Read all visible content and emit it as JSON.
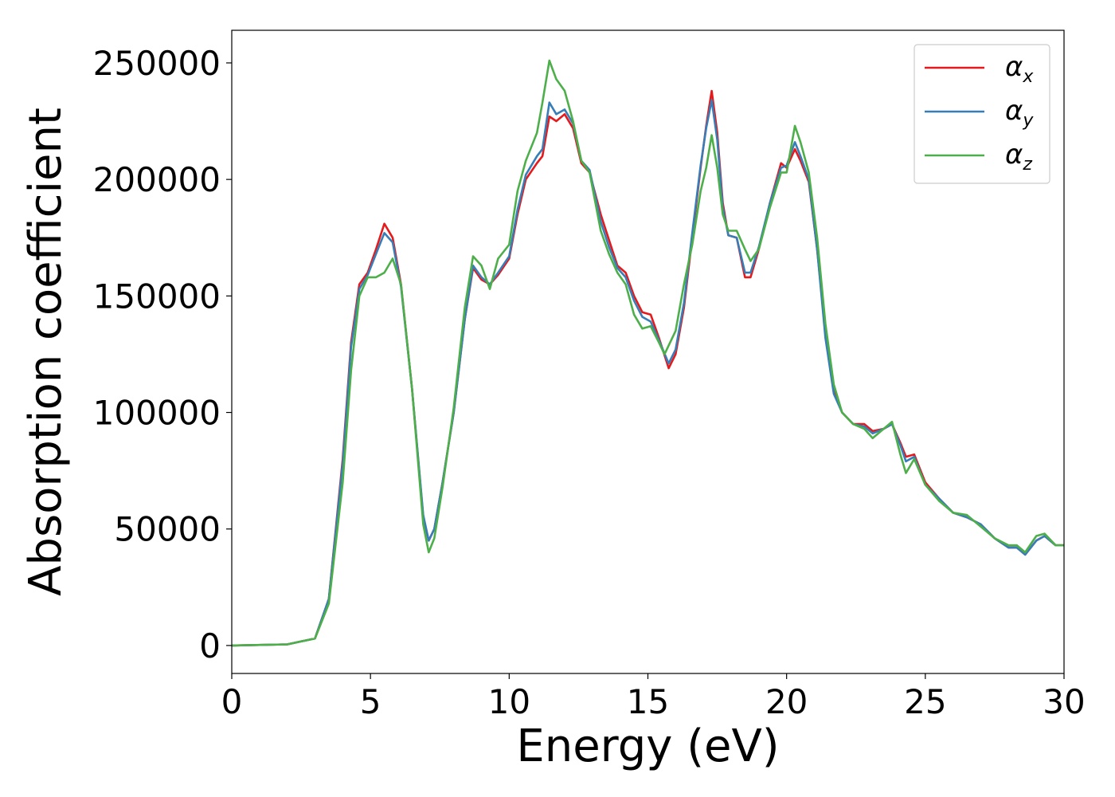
{
  "chart_data": {
    "type": "line",
    "title": "",
    "xlabel": "Energy (eV)",
    "ylabel": "Absorption coefficient",
    "xlim": [
      0,
      30
    ],
    "ylim": [
      -12000,
      264000
    ],
    "xticks": [
      0,
      5,
      10,
      15,
      20,
      25,
      30
    ],
    "xtick_labels": [
      "0",
      "5",
      "10",
      "15",
      "20",
      "25",
      "30"
    ],
    "yticks": [
      0,
      50000,
      100000,
      150000,
      200000,
      250000
    ],
    "ytick_labels": [
      "0",
      "50000",
      "100000",
      "150000",
      "200000",
      "250000"
    ],
    "grid": false,
    "legend_position": "top-right",
    "series": [
      {
        "name": "α",
        "subscript": "x",
        "color": "#e41a1c",
        "points": [
          [
            0,
            0
          ],
          [
            2,
            500
          ],
          [
            3,
            3000
          ],
          [
            3.5,
            20000
          ],
          [
            4,
            80000
          ],
          [
            4.3,
            130000
          ],
          [
            4.6,
            155000
          ],
          [
            4.9,
            160000
          ],
          [
            5.2,
            170000
          ],
          [
            5.5,
            181000
          ],
          [
            5.8,
            175000
          ],
          [
            6.1,
            155000
          ],
          [
            6.5,
            110000
          ],
          [
            6.9,
            55000
          ],
          [
            7.1,
            45000
          ],
          [
            7.3,
            50000
          ],
          [
            7.6,
            70000
          ],
          [
            8.0,
            100000
          ],
          [
            8.4,
            140000
          ],
          [
            8.7,
            162000
          ],
          [
            9.0,
            157000
          ],
          [
            9.3,
            155000
          ],
          [
            9.6,
            159000
          ],
          [
            10.0,
            166000
          ],
          [
            10.3,
            185000
          ],
          [
            10.6,
            200000
          ],
          [
            11.0,
            207000
          ],
          [
            11.2,
            210000
          ],
          [
            11.45,
            227000
          ],
          [
            11.7,
            225000
          ],
          [
            12.0,
            228000
          ],
          [
            12.3,
            222000
          ],
          [
            12.6,
            207000
          ],
          [
            12.9,
            203000
          ],
          [
            13.3,
            185000
          ],
          [
            13.6,
            174000
          ],
          [
            13.9,
            163000
          ],
          [
            14.2,
            160000
          ],
          [
            14.5,
            150000
          ],
          [
            14.8,
            143000
          ],
          [
            15.1,
            142000
          ],
          [
            15.4,
            132000
          ],
          [
            15.75,
            119000
          ],
          [
            16.0,
            125000
          ],
          [
            16.3,
            145000
          ],
          [
            16.6,
            175000
          ],
          [
            16.9,
            205000
          ],
          [
            17.1,
            223000
          ],
          [
            17.3,
            238000
          ],
          [
            17.5,
            220000
          ],
          [
            17.7,
            190000
          ],
          [
            17.9,
            176000
          ],
          [
            18.2,
            175000
          ],
          [
            18.5,
            158000
          ],
          [
            18.7,
            158000
          ],
          [
            19.0,
            170000
          ],
          [
            19.4,
            190000
          ],
          [
            19.8,
            207000
          ],
          [
            20.0,
            205000
          ],
          [
            20.3,
            213000
          ],
          [
            20.5,
            208000
          ],
          [
            20.8,
            199000
          ],
          [
            21.1,
            170000
          ],
          [
            21.4,
            135000
          ],
          [
            21.7,
            110000
          ],
          [
            22.0,
            100000
          ],
          [
            22.4,
            95000
          ],
          [
            22.8,
            95000
          ],
          [
            23.1,
            92000
          ],
          [
            23.5,
            93000
          ],
          [
            23.8,
            95000
          ],
          [
            24.1,
            87000
          ],
          [
            24.3,
            81000
          ],
          [
            24.6,
            82000
          ],
          [
            25.0,
            70000
          ],
          [
            25.5,
            63000
          ],
          [
            26.0,
            57000
          ],
          [
            26.5,
            55000
          ],
          [
            27.0,
            52000
          ],
          [
            27.5,
            46000
          ],
          [
            28.0,
            42000
          ],
          [
            28.3,
            42000
          ],
          [
            28.6,
            39000
          ],
          [
            29.0,
            45000
          ],
          [
            29.3,
            47000
          ],
          [
            29.7,
            43000
          ],
          [
            30.0,
            43000
          ]
        ]
      },
      {
        "name": "α",
        "subscript": "y",
        "color": "#377eb8",
        "points": [
          [
            0,
            0
          ],
          [
            2,
            500
          ],
          [
            3,
            3000
          ],
          [
            3.5,
            20000
          ],
          [
            4,
            78000
          ],
          [
            4.3,
            128000
          ],
          [
            4.6,
            153000
          ],
          [
            4.9,
            159000
          ],
          [
            5.2,
            168000
          ],
          [
            5.5,
            177000
          ],
          [
            5.8,
            173000
          ],
          [
            6.1,
            154000
          ],
          [
            6.5,
            110000
          ],
          [
            6.9,
            56000
          ],
          [
            7.1,
            45000
          ],
          [
            7.3,
            50000
          ],
          [
            7.6,
            70000
          ],
          [
            8.0,
            100000
          ],
          [
            8.4,
            140000
          ],
          [
            8.7,
            163000
          ],
          [
            9.0,
            158000
          ],
          [
            9.3,
            155000
          ],
          [
            9.6,
            160000
          ],
          [
            10.0,
            167000
          ],
          [
            10.3,
            187000
          ],
          [
            10.6,
            202000
          ],
          [
            11.0,
            210000
          ],
          [
            11.2,
            213000
          ],
          [
            11.45,
            233000
          ],
          [
            11.7,
            228000
          ],
          [
            12.0,
            230000
          ],
          [
            12.3,
            224000
          ],
          [
            12.6,
            208000
          ],
          [
            12.9,
            204000
          ],
          [
            13.3,
            182000
          ],
          [
            13.6,
            171000
          ],
          [
            13.9,
            162000
          ],
          [
            14.2,
            158000
          ],
          [
            14.5,
            148000
          ],
          [
            14.8,
            141000
          ],
          [
            15.1,
            139000
          ],
          [
            15.4,
            131000
          ],
          [
            15.75,
            121000
          ],
          [
            16.0,
            127000
          ],
          [
            16.3,
            147000
          ],
          [
            16.6,
            177000
          ],
          [
            16.9,
            206000
          ],
          [
            17.1,
            222000
          ],
          [
            17.3,
            234000
          ],
          [
            17.5,
            217000
          ],
          [
            17.7,
            188000
          ],
          [
            17.9,
            176000
          ],
          [
            18.2,
            175000
          ],
          [
            18.5,
            160000
          ],
          [
            18.7,
            160000
          ],
          [
            19.0,
            171000
          ],
          [
            19.4,
            190000
          ],
          [
            19.8,
            205000
          ],
          [
            20.0,
            206000
          ],
          [
            20.3,
            216000
          ],
          [
            20.5,
            210000
          ],
          [
            20.8,
            200000
          ],
          [
            21.1,
            170000
          ],
          [
            21.4,
            132000
          ],
          [
            21.7,
            108000
          ],
          [
            22.0,
            100000
          ],
          [
            22.4,
            95000
          ],
          [
            22.8,
            94000
          ],
          [
            23.1,
            91000
          ],
          [
            23.5,
            93000
          ],
          [
            23.8,
            95000
          ],
          [
            24.1,
            86000
          ],
          [
            24.3,
            79000
          ],
          [
            24.6,
            81000
          ],
          [
            25.0,
            69000
          ],
          [
            25.5,
            63000
          ],
          [
            26.0,
            57000
          ],
          [
            26.5,
            55000
          ],
          [
            27.0,
            52000
          ],
          [
            27.5,
            46000
          ],
          [
            28.0,
            42000
          ],
          [
            28.3,
            42000
          ],
          [
            28.6,
            39000
          ],
          [
            29.0,
            45000
          ],
          [
            29.3,
            47000
          ],
          [
            29.7,
            43000
          ],
          [
            30.0,
            43000
          ]
        ]
      },
      {
        "name": "α",
        "subscript": "z",
        "color": "#4daf4a",
        "points": [
          [
            0,
            0
          ],
          [
            2,
            500
          ],
          [
            3,
            3000
          ],
          [
            3.5,
            18000
          ],
          [
            4,
            70000
          ],
          [
            4.3,
            118000
          ],
          [
            4.6,
            150000
          ],
          [
            4.9,
            158000
          ],
          [
            5.2,
            158000
          ],
          [
            5.5,
            160000
          ],
          [
            5.8,
            166000
          ],
          [
            6.1,
            155000
          ],
          [
            6.5,
            110000
          ],
          [
            6.9,
            52000
          ],
          [
            7.1,
            40000
          ],
          [
            7.3,
            46000
          ],
          [
            7.6,
            68000
          ],
          [
            8.0,
            102000
          ],
          [
            8.4,
            145000
          ],
          [
            8.7,
            167000
          ],
          [
            9.0,
            163000
          ],
          [
            9.3,
            153000
          ],
          [
            9.6,
            166000
          ],
          [
            10.0,
            172000
          ],
          [
            10.3,
            195000
          ],
          [
            10.6,
            208000
          ],
          [
            11.0,
            220000
          ],
          [
            11.2,
            233000
          ],
          [
            11.45,
            251000
          ],
          [
            11.7,
            243000
          ],
          [
            12.0,
            238000
          ],
          [
            12.3,
            225000
          ],
          [
            12.6,
            208000
          ],
          [
            12.9,
            203000
          ],
          [
            13.3,
            178000
          ],
          [
            13.6,
            168000
          ],
          [
            13.9,
            160000
          ],
          [
            14.2,
            155000
          ],
          [
            14.5,
            142000
          ],
          [
            14.8,
            136000
          ],
          [
            15.1,
            137000
          ],
          [
            15.4,
            130000
          ],
          [
            15.6,
            125000
          ],
          [
            16.0,
            135000
          ],
          [
            16.3,
            155000
          ],
          [
            16.6,
            172000
          ],
          [
            16.9,
            195000
          ],
          [
            17.1,
            205000
          ],
          [
            17.3,
            219000
          ],
          [
            17.5,
            205000
          ],
          [
            17.7,
            185000
          ],
          [
            17.9,
            178000
          ],
          [
            18.2,
            178000
          ],
          [
            18.5,
            170000
          ],
          [
            18.7,
            165000
          ],
          [
            19.0,
            170000
          ],
          [
            19.4,
            188000
          ],
          [
            19.8,
            203000
          ],
          [
            20.0,
            203000
          ],
          [
            20.3,
            223000
          ],
          [
            20.5,
            216000
          ],
          [
            20.8,
            203000
          ],
          [
            21.1,
            175000
          ],
          [
            21.4,
            138000
          ],
          [
            21.7,
            112000
          ],
          [
            22.0,
            100000
          ],
          [
            22.4,
            95000
          ],
          [
            22.8,
            93000
          ],
          [
            23.1,
            89000
          ],
          [
            23.5,
            93000
          ],
          [
            23.8,
            96000
          ],
          [
            24.1,
            82000
          ],
          [
            24.3,
            74000
          ],
          [
            24.6,
            80000
          ],
          [
            25.0,
            69000
          ],
          [
            25.5,
            62000
          ],
          [
            26.0,
            57000
          ],
          [
            26.5,
            56000
          ],
          [
            27.0,
            51000
          ],
          [
            27.5,
            46000
          ],
          [
            28.0,
            43000
          ],
          [
            28.3,
            43000
          ],
          [
            28.6,
            40000
          ],
          [
            29.0,
            47000
          ],
          [
            29.3,
            48000
          ],
          [
            29.7,
            43000
          ],
          [
            30.0,
            43000
          ]
        ]
      }
    ]
  }
}
